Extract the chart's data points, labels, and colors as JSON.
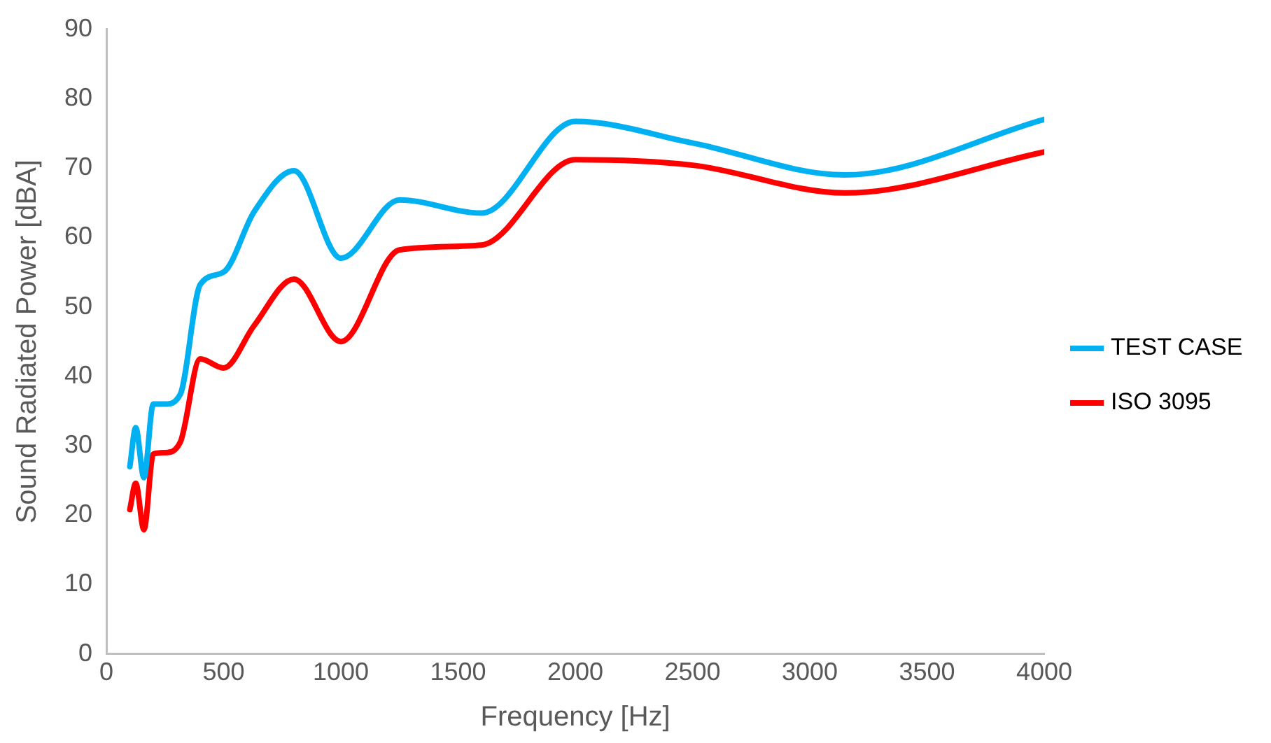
{
  "chart_data": {
    "type": "line",
    "xlabel": "Frequency [Hz]",
    "ylabel": "Sound Radiated Power [dBA]",
    "x": [
      100,
      125,
      160,
      200,
      250,
      315,
      400,
      500,
      630,
      800,
      1000,
      1250,
      1600,
      2000,
      2500,
      3150,
      4000
    ],
    "series": [
      {
        "name": "TEST CASE",
        "color": "#00b0f0",
        "values": [
          27,
          32.6,
          25.4,
          36,
          36,
          37.4,
          53.2,
          55,
          63.7,
          69.6,
          57,
          65.4,
          63.5,
          76.7,
          73.6,
          69,
          77
        ]
      },
      {
        "name": "ISO 3095",
        "color": "#ff0000",
        "values": [
          20.8,
          24.6,
          17.9,
          28.8,
          29,
          30.5,
          42.5,
          41.2,
          47.3,
          54,
          45,
          58.2,
          58.9,
          71.2,
          70.4,
          66.4,
          72.3
        ]
      }
    ],
    "xlim": [
      0,
      4000
    ],
    "xticks": [
      0,
      500,
      1000,
      1500,
      2000,
      2500,
      3000,
      3500,
      4000
    ],
    "ylim": [
      0,
      90
    ],
    "yticks": [
      0,
      10,
      20,
      30,
      40,
      50,
      60,
      70,
      80,
      90
    ],
    "grid": false,
    "legend": "right",
    "marker": "none",
    "line_style": "solid"
  }
}
